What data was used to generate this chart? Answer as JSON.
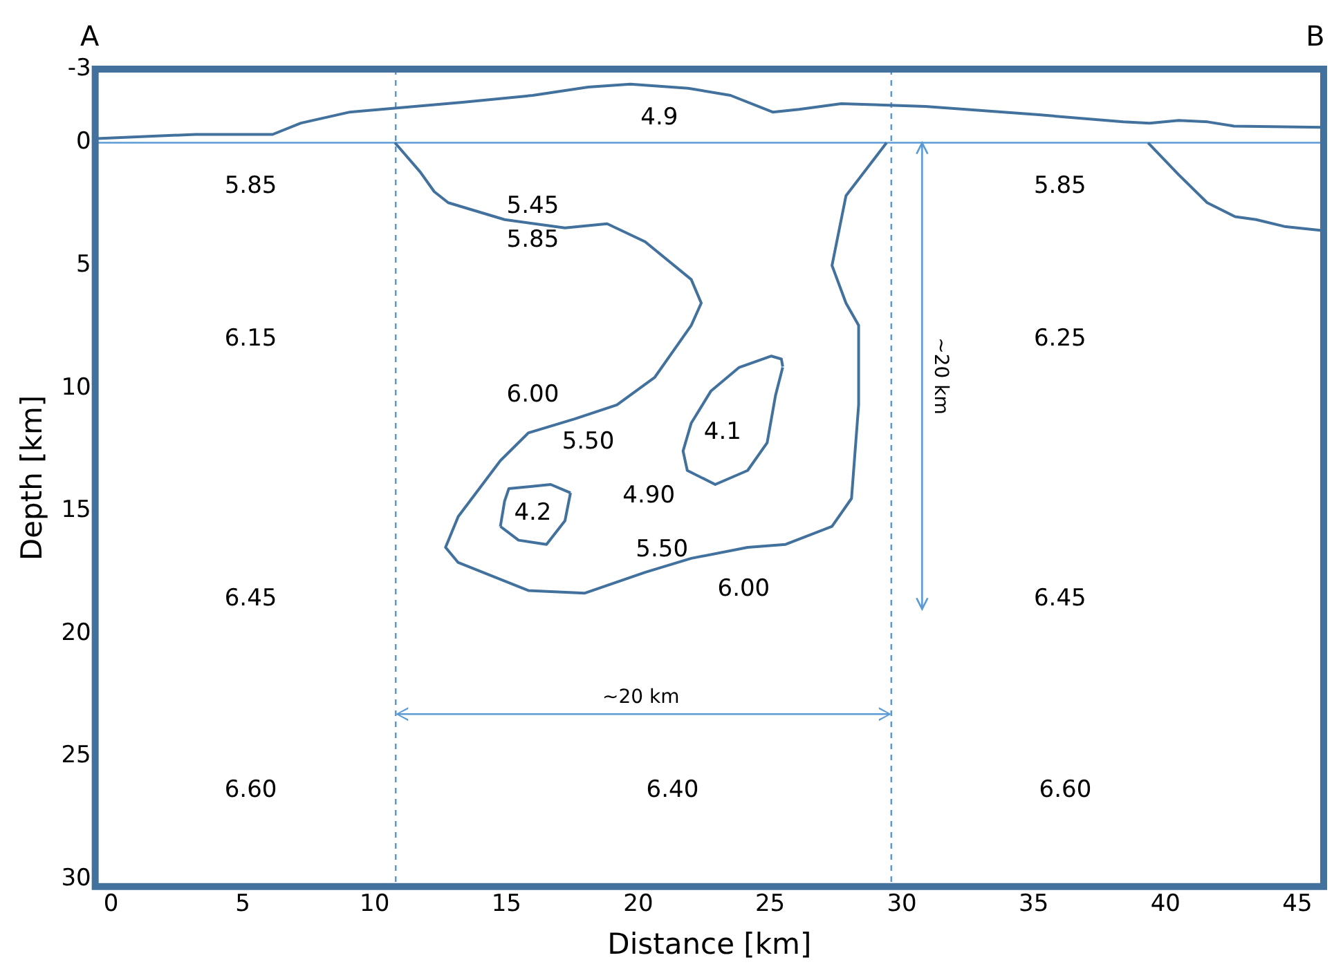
{
  "chart_data": {
    "type": "line",
    "xlabel": "Distance [km]",
    "ylabel": "Depth [km]",
    "xlim": [
      -0.6,
      46
    ],
    "xticks": [
      0,
      5,
      10,
      15,
      20,
      25,
      30,
      35,
      40,
      45
    ],
    "ylim": [
      30.3,
      -3
    ],
    "yticks": [
      -3,
      0,
      5,
      10,
      15,
      20,
      25,
      30
    ],
    "grid": false,
    "legend": false,
    "marker": "none",
    "line_style": "solid",
    "series": [
      {
        "color": "#41719c",
        "x": [
          -0.53,
          3.2,
          6.13,
          7.2,
          9.06,
          13.33,
          16.0,
          18.1,
          19.7,
          21.9,
          23.5,
          25.1,
          26.1,
          27.7,
          30.9,
          35.2,
          38.4,
          39.4,
          40.5,
          41.6,
          42.6,
          46.0
        ],
        "values": [
          -0.17,
          -0.34,
          -0.34,
          -0.8,
          -1.25,
          -1.65,
          -1.93,
          -2.27,
          -2.39,
          -2.22,
          -1.93,
          -1.25,
          -1.36,
          -1.59,
          -1.48,
          -1.14,
          -0.85,
          -0.8,
          -0.91,
          -0.85,
          -0.68,
          -0.63
        ]
      },
      {
        "color": "#41719c",
        "x": [
          10.77,
          11.73,
          12.26,
          12.79,
          14.93,
          17.22,
          18.82,
          20.26,
          22.01,
          22.39,
          22.01,
          20.63,
          19.19,
          17.59,
          15.83,
          14.77,
          13.17,
          12.69,
          13.17,
          15.83,
          17.96,
          20.26,
          22.01,
          24.15,
          25.59,
          27.35,
          28.09,
          28.36,
          28.36,
          27.88,
          27.35,
          27.88,
          29.42
        ],
        "values": [
          0,
          1.19,
          1.99,
          2.44,
          3.13,
          3.47,
          3.3,
          4.03,
          5.57,
          6.53,
          7.44,
          9.55,
          10.68,
          11.25,
          11.82,
          12.95,
          15.23,
          16.48,
          17.1,
          18.24,
          18.35,
          17.5,
          16.93,
          16.48,
          16.36,
          15.63,
          14.49,
          10.68,
          7.44,
          6.53,
          5.0,
          2.16,
          0
        ]
      },
      {
        "color": "#41719c",
        "x": [
          39.34,
          40.51,
          41.58,
          42.64,
          43.44,
          44.51,
          46.0
        ],
        "values": [
          0,
          1.31,
          2.44,
          3.01,
          3.13,
          3.41,
          3.58
        ]
      },
      {
        "color": "#41719c",
        "x": [
          25.48,
          25.21,
          24.89,
          24.15,
          22.92,
          21.86,
          21.7,
          22.01,
          22.76,
          23.83,
          25.05,
          25.43,
          25.48
        ],
        "values": [
          9.15,
          10.28,
          12.22,
          13.35,
          13.92,
          13.35,
          12.56,
          11.42,
          10.11,
          9.15,
          8.69,
          8.81,
          9.12
        ]
      },
      {
        "color": "#41719c",
        "x": [
          14.77,
          14.93,
          15.09,
          16.68,
          17.43
        ],
        "values": [
          15.63,
          14.6,
          14.09,
          13.92,
          14.26
        ]
      },
      {
        "color": "#41719c",
        "x": [
          14.77,
          15.46,
          16.52,
          17.22,
          17.43
        ],
        "values": [
          15.63,
          16.19,
          16.36,
          15.4,
          14.26
        ]
      }
    ],
    "ref_lines": [
      {
        "axis": "y",
        "value": 0,
        "color": "#5b9bd5",
        "line_style": "solid"
      },
      {
        "axis": "x",
        "value": 10.8,
        "color": "#5b9bd5",
        "line_style": "dashed"
      },
      {
        "axis": "x",
        "value": 29.6,
        "color": "#5b9bd5",
        "line_style": "dashed"
      }
    ],
    "annotations": [
      "A",
      "B",
      "4.9",
      "5.85",
      "5.45",
      "5.85",
      "5.85",
      "6.15",
      "6.25",
      "6.00",
      "5.50",
      "4.1",
      "4.90",
      "4.2",
      "5.50",
      "6.00",
      "6.45",
      "6.45",
      "6.60",
      "6.40",
      "6.60",
      "~20 km",
      "~20 km"
    ]
  }
}
